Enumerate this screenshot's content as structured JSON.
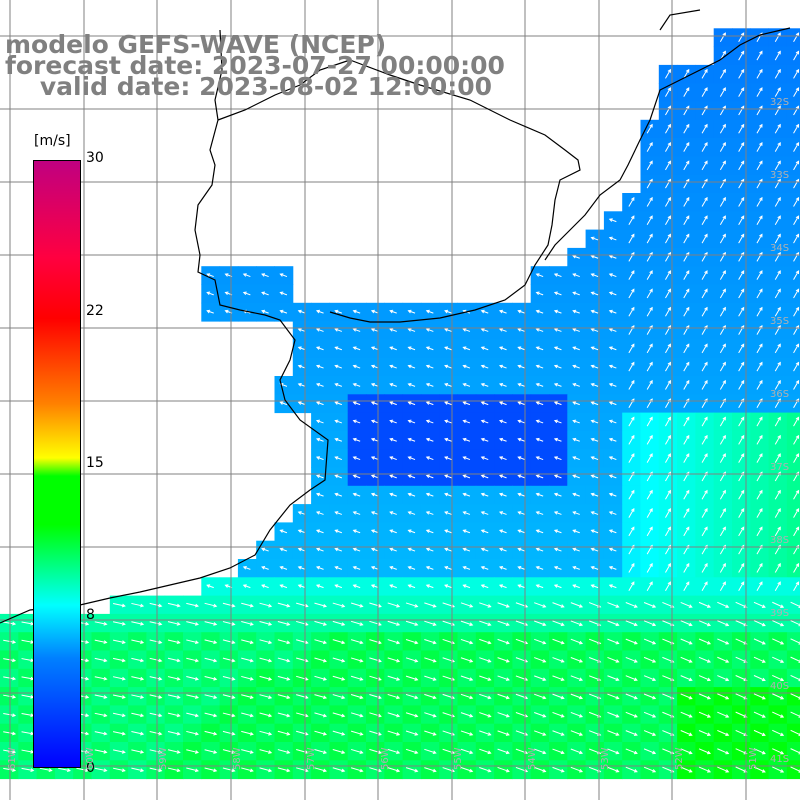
{
  "title": {
    "line1": "modelo GEFS-WAVE (NCEP)",
    "line2": "forecast date: 2023-07-27 00:00:00",
    "line3": "    valid date: 2023-08-02 12:00:00"
  },
  "colorbar": {
    "unit": "[m/s]",
    "ticks": [
      "30",
      "22",
      "15",
      "8",
      "0"
    ],
    "min": 0,
    "max": 30
  },
  "longitude_labels": [
    "61W",
    "60W",
    "59W",
    "58W",
    "57W",
    "56W",
    "55W",
    "54W",
    "53W",
    "52W",
    "51W"
  ],
  "latitude_labels": [
    "32S",
    "33S",
    "34S",
    "35S",
    "36S",
    "37S",
    "38S",
    "39S",
    "40S",
    "41S"
  ],
  "colors": {
    "land": "#ffffff",
    "coast": "#000000",
    "grid": "#808080",
    "title": "#808080",
    "arrows": "#ffffff"
  }
}
